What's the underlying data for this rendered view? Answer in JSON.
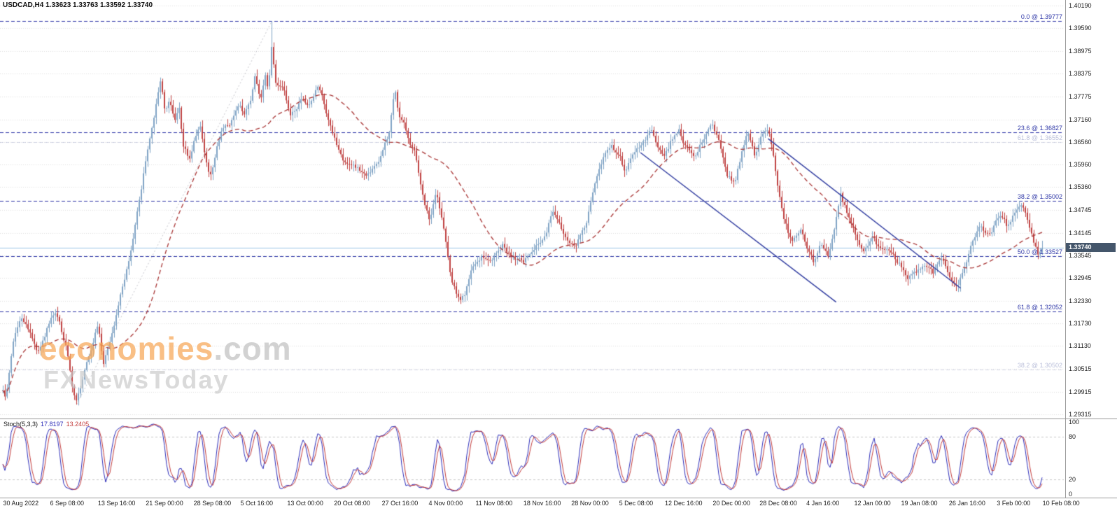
{
  "window": {
    "title_line": "USDCAD,H4 1.33623 1.33763 1.33592 1.33740"
  },
  "symbol": {
    "name": "USDCAD",
    "timeframe": "H4",
    "open": "1.33623",
    "high": "1.33763",
    "low": "1.33592",
    "close": "1.33740"
  },
  "watermark": {
    "line1_main": "economies",
    "line1_suffix": ".com",
    "line2": "FXNewsToday"
  },
  "current_price": {
    "value": "1.33740",
    "price": 1.3374
  },
  "price_axis": {
    "ticks": [
      "1.40190",
      "1.39590",
      "1.38975",
      "1.38375",
      "1.37775",
      "1.37160",
      "1.36560",
      "1.35960",
      "1.35360",
      "1.34745",
      "1.34145",
      "1.33545",
      "1.32945",
      "1.32330",
      "1.31730",
      "1.31130",
      "1.30515",
      "1.29915",
      "1.29315"
    ]
  },
  "time_axis": {
    "labels": [
      {
        "t": 0.003,
        "text": "30 Aug 2022"
      },
      {
        "t": 0.047,
        "text": "6 Sep 08:00"
      },
      {
        "t": 0.092,
        "text": "13 Sep 16:00"
      },
      {
        "t": 0.137,
        "text": "21 Sep 00:00"
      },
      {
        "t": 0.182,
        "text": "28 Sep 08:00"
      },
      {
        "t": 0.226,
        "text": "5 Oct 16:00"
      },
      {
        "t": 0.27,
        "text": "13 Oct 00:00"
      },
      {
        "t": 0.314,
        "text": "20 Oct 08:00"
      },
      {
        "t": 0.359,
        "text": "27 Oct 16:00"
      },
      {
        "t": 0.403,
        "text": "4 Nov 00:00"
      },
      {
        "t": 0.447,
        "text": "11 Nov 08:00"
      },
      {
        "t": 0.492,
        "text": "18 Nov 16:00"
      },
      {
        "t": 0.537,
        "text": "28 Nov 00:00"
      },
      {
        "t": 0.582,
        "text": "5 Dec 08:00"
      },
      {
        "t": 0.625,
        "text": "12 Dec 16:00"
      },
      {
        "t": 0.67,
        "text": "20 Dec 00:00"
      },
      {
        "t": 0.714,
        "text": "28 Dec 08:00"
      },
      {
        "t": 0.758,
        "text": "4 Jan 16:00"
      },
      {
        "t": 0.803,
        "text": "12 Jan 00:00"
      },
      {
        "t": 0.847,
        "text": "19 Jan 08:00"
      },
      {
        "t": 0.892,
        "text": "26 Jan 16:00"
      },
      {
        "t": 0.937,
        "text": "3 Feb 00:00"
      },
      {
        "t": 0.98,
        "text": "10 Feb 08:00"
      }
    ]
  },
  "fib_levels": [
    {
      "label": "0.0 @ 1.39777",
      "price": 1.39777,
      "faded": false
    },
    {
      "label": "23.6 @ 1.36827",
      "price": 1.36827,
      "faded": false
    },
    {
      "label": "61.8 @ 1.36552",
      "price": 1.36552,
      "faded": true
    },
    {
      "label": "38.2 @ 1.35002",
      "price": 1.35002,
      "faded": false
    },
    {
      "label": "50.0 @ 1.33527",
      "price": 1.33527,
      "faded": false
    },
    {
      "label": "61.8 @ 1.32052",
      "price": 1.32052,
      "faded": false
    },
    {
      "label": "38.2 @ 1.30502",
      "price": 1.30502,
      "faded": true
    }
  ],
  "trendlines": [
    {
      "t1": 0.602,
      "p1": 1.3628,
      "t2": 0.786,
      "p2": 1.323
    },
    {
      "t1": 0.722,
      "p1": 1.3665,
      "t2": 0.903,
      "p2": 1.3267
    }
  ],
  "fib_diagonal": {
    "t1": 0.072,
    "p1": 1.2957,
    "t2": 0.2555,
    "p2": 1.39777
  },
  "indicator": {
    "label": "Stoch(5,3,3)",
    "value1": "17.8197",
    "value2": "13.2405",
    "levels": [
      20,
      80
    ],
    "range": [
      0,
      100
    ],
    "axis_labels": [
      "100",
      "80",
      "20",
      "0"
    ]
  },
  "chart_data": [
    {
      "type": "candlestick",
      "title": "USDCAD H4",
      "x_range": [
        "30 Aug 2022",
        "10 Feb 2023"
      ],
      "ylim": [
        1.292,
        1.4034
      ],
      "y_ticks": [
        1.4019,
        1.3959,
        1.38975,
        1.38375,
        1.37775,
        1.3716,
        1.3656,
        1.3596,
        1.3536,
        1.34745,
        1.34145,
        1.33545,
        1.32945,
        1.3233,
        1.3173,
        1.3113,
        1.30515,
        1.29915,
        1.29315
      ],
      "grid": "dotted-horizontal",
      "legend_position": "none",
      "ohlc_current": {
        "open": 1.33623,
        "high": 1.33763,
        "low": 1.33592,
        "close": 1.3374
      },
      "extremes": {
        "high": 1.39777,
        "high_t": 0.2555,
        "low": 1.2957,
        "low_t": 0.072,
        "last_close": 1.3374
      },
      "overlays": [
        "dashed red moving average",
        "two navy descending trendlines",
        "blue dashed fibonacci levels",
        "light blue current-price line"
      ],
      "price_path": [
        [
          0.0,
          1.302
        ],
        [
          0.005,
          1.2968
        ],
        [
          0.013,
          1.312
        ],
        [
          0.02,
          1.3175
        ],
        [
          0.03,
          1.313
        ],
        [
          0.036,
          1.3095
        ],
        [
          0.045,
          1.3165
        ],
        [
          0.053,
          1.32
        ],
        [
          0.063,
          1.31
        ],
        [
          0.069,
          1.299
        ],
        [
          0.072,
          1.2958
        ],
        [
          0.084,
          1.308
        ],
        [
          0.092,
          1.316
        ],
        [
          0.097,
          1.306
        ],
        [
          0.102,
          1.312
        ],
        [
          0.109,
          1.319
        ],
        [
          0.113,
          1.325
        ],
        [
          0.122,
          1.334
        ],
        [
          0.132,
          1.35
        ],
        [
          0.138,
          1.362
        ],
        [
          0.145,
          1.373
        ],
        [
          0.151,
          1.3815
        ],
        [
          0.155,
          1.373
        ],
        [
          0.159,
          1.3762
        ],
        [
          0.164,
          1.37
        ],
        [
          0.168,
          1.3745
        ],
        [
          0.172,
          1.364
        ],
        [
          0.178,
          1.36
        ],
        [
          0.183,
          1.366
        ],
        [
          0.188,
          1.3685
        ],
        [
          0.192,
          1.363
        ],
        [
          0.197,
          1.356
        ],
        [
          0.204,
          1.364
        ],
        [
          0.209,
          1.37
        ],
        [
          0.216,
          1.372
        ],
        [
          0.224,
          1.3762
        ],
        [
          0.23,
          1.3728
        ],
        [
          0.236,
          1.377
        ],
        [
          0.24,
          1.383
        ],
        [
          0.245,
          1.376
        ],
        [
          0.249,
          1.3822
        ],
        [
          0.252,
          1.3785
        ],
        [
          0.2555,
          1.3905
        ],
        [
          0.259,
          1.38
        ],
        [
          0.266,
          1.3802
        ],
        [
          0.273,
          1.3732
        ],
        [
          0.283,
          1.378
        ],
        [
          0.29,
          1.3758
        ],
        [
          0.299,
          1.3818
        ],
        [
          0.306,
          1.3752
        ],
        [
          0.316,
          1.3662
        ],
        [
          0.326,
          1.3602
        ],
        [
          0.336,
          1.3572
        ],
        [
          0.345,
          1.3542
        ],
        [
          0.352,
          1.358
        ],
        [
          0.359,
          1.3622
        ],
        [
          0.365,
          1.3662
        ],
        [
          0.371,
          1.3785
        ],
        [
          0.375,
          1.372
        ],
        [
          0.381,
          1.3682
        ],
        [
          0.39,
          1.3622
        ],
        [
          0.398,
          1.3522
        ],
        [
          0.404,
          1.3462
        ],
        [
          0.41,
          1.352
        ],
        [
          0.4165,
          1.3425
        ],
        [
          0.425,
          1.3285
        ],
        [
          0.4335,
          1.3218
        ],
        [
          0.438,
          1.3245
        ],
        [
          0.444,
          1.332
        ],
        [
          0.452,
          1.336
        ],
        [
          0.462,
          1.333
        ],
        [
          0.472,
          1.3382
        ],
        [
          0.482,
          1.3342
        ],
        [
          0.492,
          1.3322
        ],
        [
          0.502,
          1.3372
        ],
        [
          0.511,
          1.3412
        ],
        [
          0.519,
          1.3478
        ],
        [
          0.526,
          1.3442
        ],
        [
          0.534,
          1.3402
        ],
        [
          0.541,
          1.3365
        ],
        [
          0.551,
          1.3442
        ],
        [
          0.56,
          1.3555
        ],
        [
          0.567,
          1.3602
        ],
        [
          0.575,
          1.3652
        ],
        [
          0.582,
          1.3622
        ],
        [
          0.588,
          1.3572
        ],
        [
          0.595,
          1.3612
        ],
        [
          0.604,
          1.3652
        ],
        [
          0.612,
          1.3682
        ],
        [
          0.618,
          1.3642
        ],
        [
          0.624,
          1.3602
        ],
        [
          0.631,
          1.3652
        ],
        [
          0.638,
          1.3682
        ],
        [
          0.647,
          1.3622
        ],
        [
          0.653,
          1.3582
        ],
        [
          0.662,
          1.3642
        ],
        [
          0.669,
          1.3682
        ],
        [
          0.676,
          1.3632
        ],
        [
          0.684,
          1.3562
        ],
        [
          0.691,
          1.3542
        ],
        [
          0.697,
          1.3622
        ],
        [
          0.703,
          1.3672
        ],
        [
          0.709,
          1.3602
        ],
        [
          0.716,
          1.3662
        ],
        [
          0.722,
          1.3685
        ],
        [
          0.728,
          1.3582
        ],
        [
          0.732,
          1.3502
        ],
        [
          0.737,
          1.3422
        ],
        [
          0.744,
          1.3362
        ],
        [
          0.752,
          1.3402
        ],
        [
          0.759,
          1.3362
        ],
        [
          0.765,
          1.3322
        ],
        [
          0.772,
          1.3382
        ],
        [
          0.778,
          1.3342
        ],
        [
          0.785,
          1.3422
        ],
        [
          0.79,
          1.3498
        ],
        [
          0.795,
          1.3462
        ],
        [
          0.803,
          1.3402
        ],
        [
          0.811,
          1.3362
        ],
        [
          0.82,
          1.3382
        ],
        [
          0.828,
          1.3342
        ],
        [
          0.835,
          1.3322
        ],
        [
          0.845,
          1.3302
        ],
        [
          0.853,
          1.3272
        ],
        [
          0.861,
          1.3288
        ],
        [
          0.869,
          1.3312
        ],
        [
          0.877,
          1.3282
        ],
        [
          0.884,
          1.3322
        ],
        [
          0.893,
          1.3272
        ],
        [
          0.899,
          1.3248
        ],
        [
          0.906,
          1.3302
        ],
        [
          0.913,
          1.3382
        ],
        [
          0.921,
          1.3442
        ],
        [
          0.93,
          1.3412
        ],
        [
          0.939,
          1.3455
        ],
        [
          0.946,
          1.3422
        ],
        [
          0.954,
          1.3462
        ],
        [
          0.963,
          1.3472
        ],
        [
          0.969,
          1.3412
        ],
        [
          0.9755,
          1.3352
        ],
        [
          0.98,
          1.3374
        ]
      ]
    },
    {
      "type": "line",
      "title": "Stoch(5,3,3)",
      "ylim": [
        0,
        100
      ],
      "levels": [
        20,
        80
      ],
      "last_values": {
        "main": 17.8197,
        "signal": 13.2405
      },
      "series_note": "fast stochastic %K (blue) and %D signal (red) oscillating across full 0-100 range, derived from the candlestick series with period 5, slowing 3, signal 3"
    }
  ],
  "colors": {
    "up": "#7fa3c4",
    "down": "#bf4040",
    "ma": "#a83434",
    "stoch_main": "#2b2bb8",
    "stoch_signal": "#c23b3b",
    "fib": "#3039a8",
    "trend": "#2e3a9f",
    "bid_line": "#9cc5e6",
    "grid": "#dedede",
    "tag_bg": "#44566b",
    "watermark_orange": "#f6a656",
    "watermark_gray": "#c8c8c8"
  }
}
